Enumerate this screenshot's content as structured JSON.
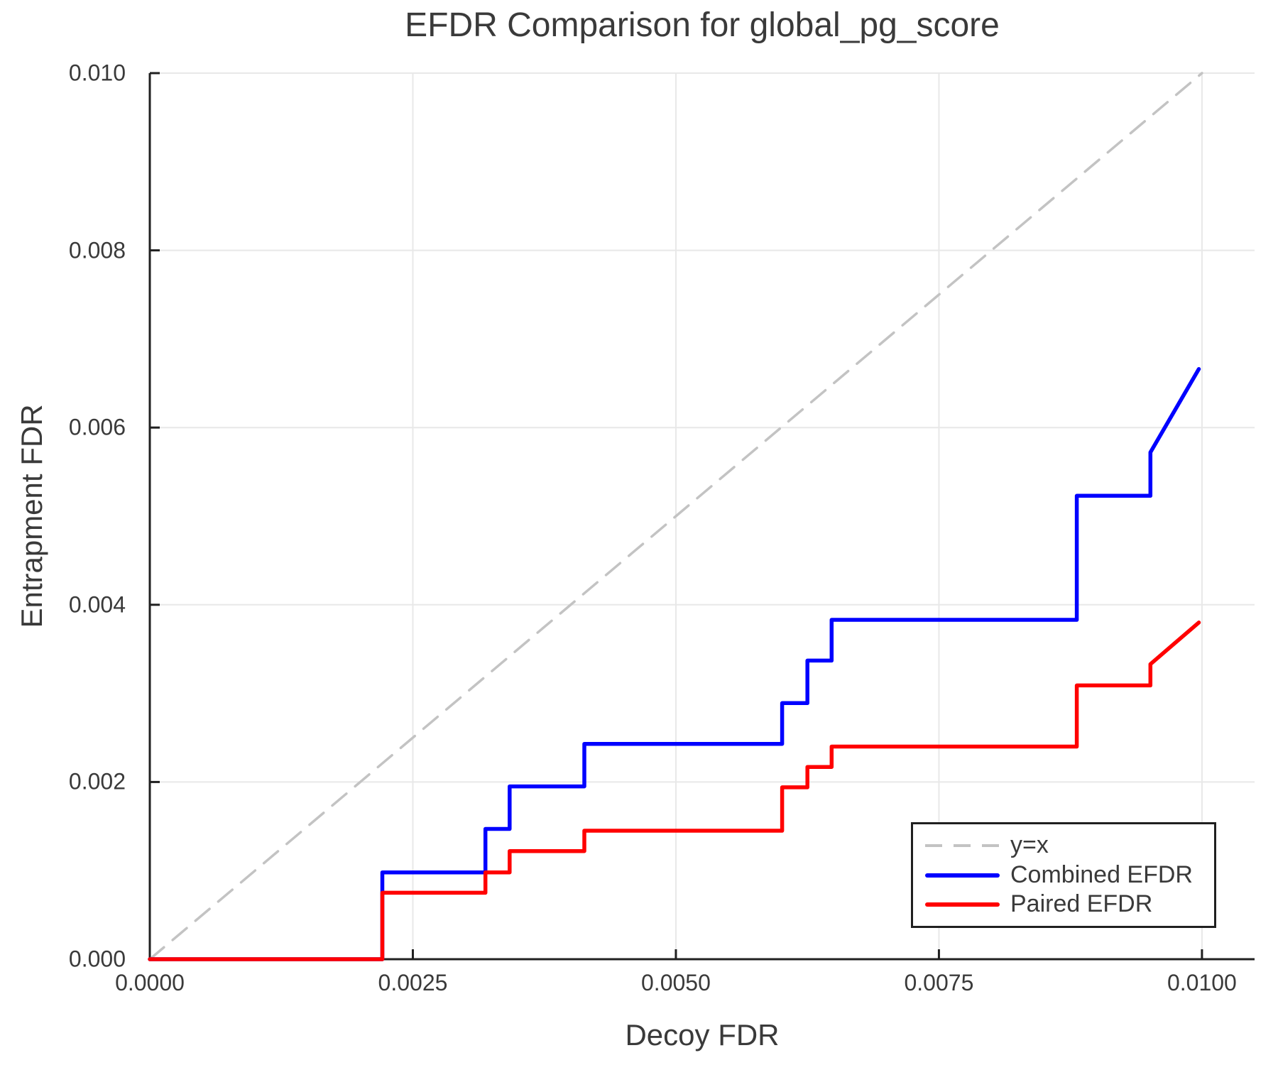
{
  "title": "EFDR Comparison for global_pg_score",
  "axes": {
    "x_label": "Decoy FDR",
    "y_label": "Entrapment FDR"
  },
  "legend": {
    "items": [
      {
        "label": "y=x",
        "color": "#c3c3c3",
        "style": "dashed"
      },
      {
        "label": "Combined EFDR",
        "color": "#0000ff",
        "style": "solid"
      },
      {
        "label": "Paired EFDR",
        "color": "#ff0000",
        "style": "solid"
      }
    ]
  },
  "colors": {
    "spine": "#202020",
    "grid": "#e8e8e8",
    "text": "#3a3a3a",
    "identity_line": "#c3c3c3",
    "combined": "#0000ff",
    "paired": "#ff0000"
  },
  "chart_data": {
    "type": "line",
    "title": "EFDR Comparison for global_pg_score",
    "xlabel": "Decoy FDR",
    "ylabel": "Entrapment FDR",
    "xlim": [
      0,
      0.0105
    ],
    "ylim": [
      0,
      0.01
    ],
    "grid": true,
    "legend_position": "lower right",
    "x_ticks": [
      {
        "v": 0.0,
        "label": "0.0000"
      },
      {
        "v": 0.0025,
        "label": "0.0025"
      },
      {
        "v": 0.005,
        "label": "0.0050"
      },
      {
        "v": 0.0075,
        "label": "0.0075"
      },
      {
        "v": 0.01,
        "label": "0.0100"
      }
    ],
    "y_ticks": [
      {
        "v": 0.0,
        "label": "0.000"
      },
      {
        "v": 0.002,
        "label": "0.002"
      },
      {
        "v": 0.004,
        "label": "0.004"
      },
      {
        "v": 0.006,
        "label": "0.006"
      },
      {
        "v": 0.008,
        "label": "0.008"
      },
      {
        "v": 0.01,
        "label": "0.010"
      }
    ],
    "series": [
      {
        "name": "y=x",
        "color": "#c3c3c3",
        "style": "dashed",
        "width": 3.5,
        "points": [
          [
            0,
            0
          ],
          [
            0.01,
            0.01
          ]
        ]
      },
      {
        "name": "Combined EFDR",
        "color": "#0000ff",
        "style": "solid",
        "width": 5.5,
        "points": [
          [
            0,
            0
          ],
          [
            0.00221,
            0
          ],
          [
            0.00221,
            0.00098
          ],
          [
            0.00319,
            0.00098
          ],
          [
            0.00319,
            0.00147
          ],
          [
            0.00342,
            0.00147
          ],
          [
            0.00342,
            0.00195
          ],
          [
            0.00413,
            0.00195
          ],
          [
            0.00413,
            0.00243
          ],
          [
            0.00601,
            0.00243
          ],
          [
            0.00601,
            0.00289
          ],
          [
            0.00625,
            0.00289
          ],
          [
            0.00625,
            0.00337
          ],
          [
            0.00648,
            0.00337
          ],
          [
            0.00648,
            0.00383
          ],
          [
            0.00881,
            0.00383
          ],
          [
            0.00881,
            0.00523
          ],
          [
            0.00951,
            0.00523
          ],
          [
            0.00951,
            0.00572
          ],
          [
            0.00997,
            0.00666
          ]
        ]
      },
      {
        "name": "Paired EFDR",
        "color": "#ff0000",
        "style": "solid",
        "width": 5.5,
        "points": [
          [
            0,
            0
          ],
          [
            0.00221,
            0
          ],
          [
            0.00221,
            0.00075
          ],
          [
            0.00319,
            0.00075
          ],
          [
            0.00319,
            0.00098
          ],
          [
            0.00342,
            0.00098
          ],
          [
            0.00342,
            0.00122
          ],
          [
            0.00413,
            0.00122
          ],
          [
            0.00413,
            0.00145
          ],
          [
            0.00601,
            0.00145
          ],
          [
            0.00601,
            0.00194
          ],
          [
            0.00625,
            0.00194
          ],
          [
            0.00625,
            0.00217
          ],
          [
            0.00648,
            0.00217
          ],
          [
            0.00648,
            0.0024
          ],
          [
            0.00881,
            0.0024
          ],
          [
            0.00881,
            0.00309
          ],
          [
            0.00951,
            0.00309
          ],
          [
            0.00951,
            0.00333
          ],
          [
            0.00997,
            0.0038
          ]
        ]
      }
    ]
  }
}
